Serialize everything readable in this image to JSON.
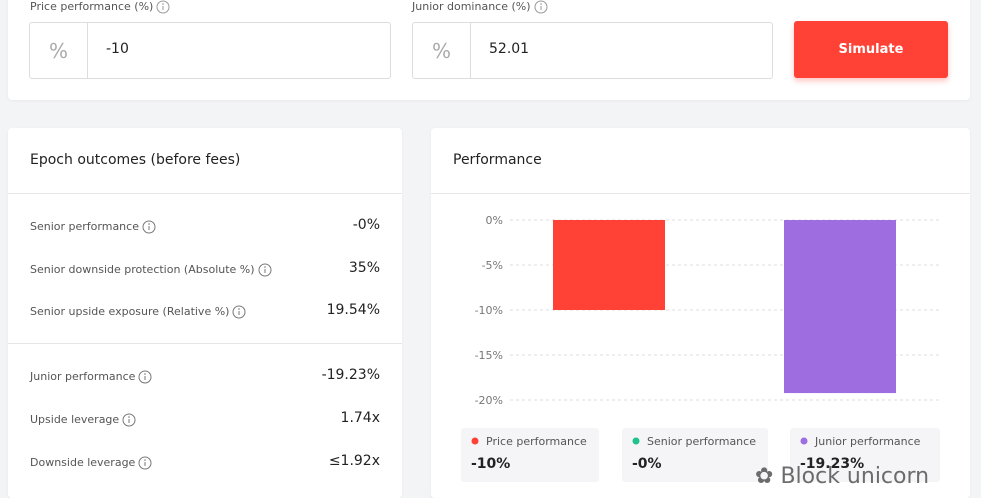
{
  "form": {
    "fields": [
      {
        "label": "Price performance (%)",
        "prefix": "%",
        "value": "-10"
      },
      {
        "label": "Junior dominance (%)",
        "prefix": "%",
        "value": "52.01"
      }
    ],
    "button": "Simulate"
  },
  "outcomes": {
    "title": "Epoch outcomes (before fees)",
    "groups": [
      [
        [
          "Senior performance",
          "-0%"
        ],
        [
          "Senior downside protection (Absolute %)",
          "35%"
        ],
        [
          "Senior upside exposure (Relative %)",
          "19.54%"
        ]
      ],
      [
        [
          "Junior performance",
          "-19.23%"
        ],
        [
          "Upside leverage",
          "1.74x"
        ],
        [
          "Downside leverage",
          "≤1.92x"
        ]
      ]
    ]
  },
  "chart_data": {
    "type": "bar",
    "title": "Performance",
    "categories": [
      "Price performance",
      "Senior performance",
      "Junior performance"
    ],
    "values": [
      -10,
      0,
      -19.23
    ],
    "value_labels": [
      "-10%",
      "-0%",
      "-19.23%"
    ],
    "colors": [
      "#ff4136",
      "#1ec28b",
      "#9e6ddf"
    ],
    "ylim": [
      -20,
      0
    ],
    "yticks": [
      {
        "value": 0,
        "label": "0%"
      },
      {
        "value": -5,
        "label": "-5%"
      },
      {
        "value": -10,
        "label": "-10%"
      },
      {
        "value": -15,
        "label": "-15%"
      },
      {
        "value": -20,
        "label": "-20%"
      }
    ],
    "grid": true
  },
  "watermark": "Block unicorn"
}
